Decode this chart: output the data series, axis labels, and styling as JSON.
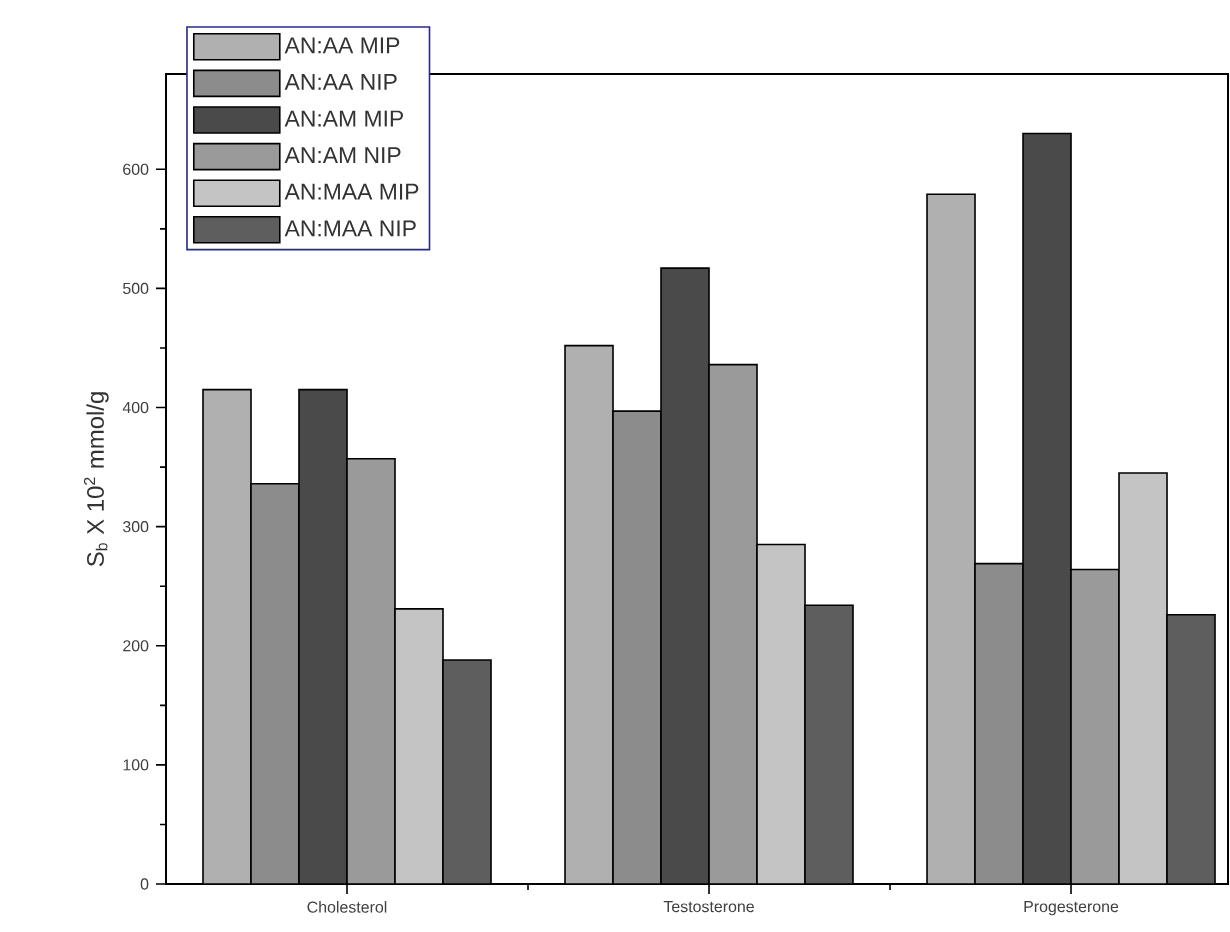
{
  "chart_data": {
    "type": "bar",
    "ylabel": "S$_{b}$ X 10$^{2}$ mmol/g",
    "categories": [
      "Cholesterol",
      "Testosterone",
      "Progesterone"
    ],
    "series": [
      {
        "name": "AN:AA MIP",
        "color": "#b0b0b0",
        "values": [
          415,
          452,
          579
        ]
      },
      {
        "name": "AN:AA NIP",
        "color": "#8c8c8c",
        "values": [
          336,
          397,
          269
        ]
      },
      {
        "name": "AN:AM MIP",
        "color": "#4a4a4a",
        "values": [
          415,
          517,
          630
        ]
      },
      {
        "name": "AN:AM NIP",
        "color": "#9a9a9a",
        "values": [
          357,
          436,
          264
        ]
      },
      {
        "name": "AN:MAA MIP",
        "color": "#c4c4c4",
        "values": [
          231,
          285,
          345
        ]
      },
      {
        "name": "AN:MAA NIP",
        "color": "#5e5e5e",
        "values": [
          188,
          234,
          226
        ]
      }
    ],
    "ylim": [
      0,
      680
    ],
    "yticks": [
      0,
      100,
      200,
      300,
      400,
      500,
      600
    ],
    "legend": "top left"
  }
}
